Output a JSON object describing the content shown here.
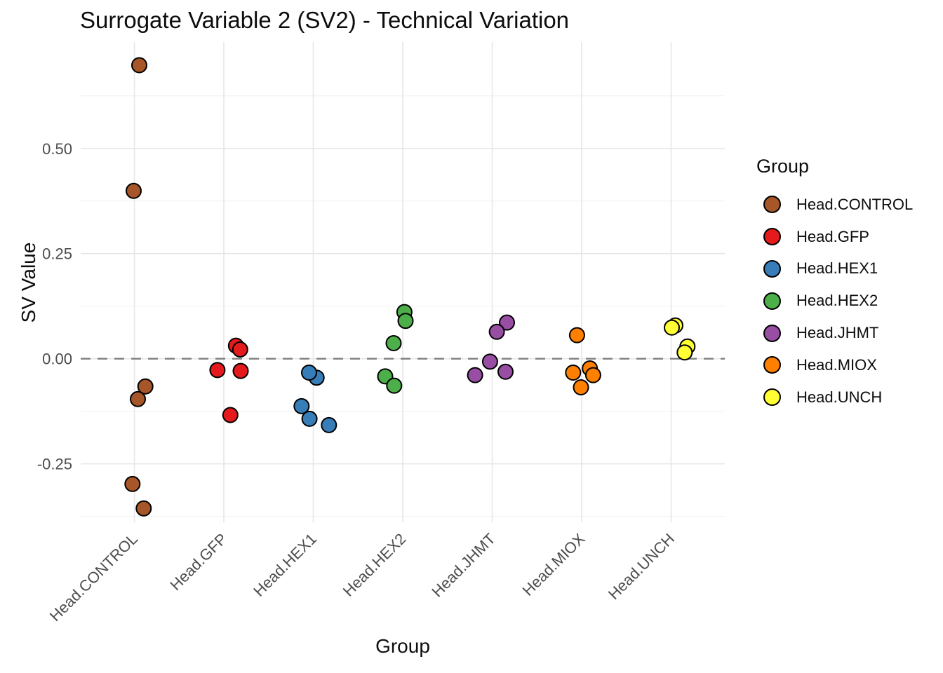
{
  "figure": {
    "title": "Surrogate Variable 2 (SV2) - Technical Variation",
    "x_axis_title": "Group",
    "y_axis_title": "SV Value"
  },
  "chart_data": {
    "type": "scatter",
    "title": "Surrogate Variable 2 (SV2) - Technical Variation",
    "xlabel": "Group",
    "ylabel": "SV Value",
    "categories": [
      "Head.CONTROL",
      "Head.GFP",
      "Head.HEX1",
      "Head.HEX2",
      "Head.JHMT",
      "Head.MIOX",
      "Head.UNCH"
    ],
    "ylim": [
      -0.389,
      0.753
    ],
    "y_major_ticks": [
      0.5,
      0.25,
      0.0,
      -0.25
    ],
    "y_tick_labels": [
      "0.50",
      "0.25",
      "0.00",
      "-0.25"
    ],
    "y_minor_ticks": [
      0.625,
      0.375,
      0.125,
      -0.125,
      -0.375
    ],
    "grid": true,
    "legend_position": "right",
    "reference_line": {
      "y": 0.0,
      "style": "dashed",
      "color": "#7F7F7F"
    },
    "legend": {
      "title": "Group",
      "entries": [
        "Head.CONTROL",
        "Head.GFP",
        "Head.HEX1",
        "Head.HEX2",
        "Head.JHMT",
        "Head.MIOX",
        "Head.UNCH"
      ]
    },
    "series": [
      {
        "name": "Head.CONTROL",
        "color": "#A65628",
        "points": [
          [
            0.055,
            0.698
          ],
          [
            -0.008,
            0.399
          ],
          [
            0.123,
            -0.066
          ],
          [
            0.039,
            -0.096
          ],
          [
            -0.021,
            -0.298
          ],
          [
            0.104,
            -0.356
          ]
        ]
      },
      {
        "name": "Head.GFP",
        "color": "#E41A1C",
        "points": [
          [
            0.136,
            0.031
          ],
          [
            0.183,
            0.022
          ],
          [
            -0.071,
            -0.027
          ],
          [
            0.188,
            -0.029
          ],
          [
            0.073,
            -0.134
          ]
        ]
      },
      {
        "name": "Head.HEX1",
        "color": "#377EB8",
        "points": [
          [
            0.037,
            -0.045
          ],
          [
            -0.047,
            -0.033
          ],
          [
            -0.131,
            -0.113
          ],
          [
            -0.042,
            -0.143
          ],
          [
            0.175,
            -0.158
          ]
        ]
      },
      {
        "name": "Head.HEX2",
        "color": "#4DAF4A",
        "points": [
          [
            0.019,
            0.111
          ],
          [
            0.031,
            0.09
          ],
          [
            -0.102,
            0.037
          ],
          [
            -0.196,
            -0.042
          ],
          [
            -0.096,
            -0.064
          ]
        ]
      },
      {
        "name": "Head.JHMT",
        "color": "#984EA3",
        "points": [
          [
            0.165,
            0.086
          ],
          [
            0.052,
            0.064
          ],
          [
            -0.024,
            -0.007
          ],
          [
            0.149,
            -0.031
          ],
          [
            -0.191,
            -0.039
          ]
        ]
      },
      {
        "name": "Head.MIOX",
        "color": "#FF7F00",
        "points": [
          [
            -0.052,
            0.056
          ],
          [
            0.092,
            -0.023
          ],
          [
            -0.096,
            -0.033
          ],
          [
            0.129,
            -0.039
          ],
          [
            -0.008,
            -0.068
          ]
        ]
      },
      {
        "name": "Head.UNCH",
        "color": "#FFFF33",
        "points": [
          [
            0.047,
            0.079
          ],
          [
            0.008,
            0.074
          ],
          [
            0.183,
            0.029
          ],
          [
            0.151,
            0.015
          ]
        ]
      }
    ]
  }
}
